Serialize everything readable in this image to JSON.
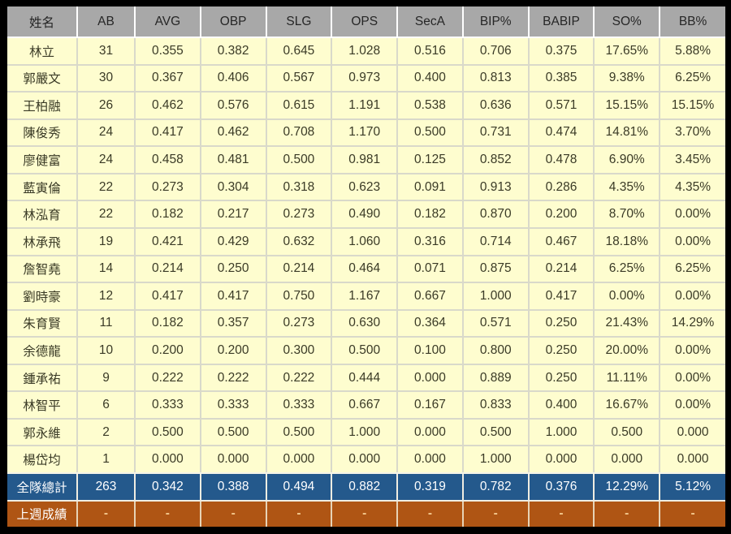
{
  "table": {
    "header": [
      "姓名",
      "AB",
      "AVG",
      "OBP",
      "SLG",
      "OPS",
      "SecA",
      "BIP%",
      "BABIP",
      "SO%",
      "BB%"
    ],
    "players": [
      [
        "林立",
        "31",
        "0.355",
        "0.382",
        "0.645",
        "1.028",
        "0.516",
        "0.706",
        "0.375",
        "17.65%",
        "5.88%"
      ],
      [
        "郭嚴文",
        "30",
        "0.367",
        "0.406",
        "0.567",
        "0.973",
        "0.400",
        "0.813",
        "0.385",
        "9.38%",
        "6.25%"
      ],
      [
        "王柏融",
        "26",
        "0.462",
        "0.576",
        "0.615",
        "1.191",
        "0.538",
        "0.636",
        "0.571",
        "15.15%",
        "15.15%"
      ],
      [
        "陳俊秀",
        "24",
        "0.417",
        "0.462",
        "0.708",
        "1.170",
        "0.500",
        "0.731",
        "0.474",
        "14.81%",
        "3.70%"
      ],
      [
        "廖健富",
        "24",
        "0.458",
        "0.481",
        "0.500",
        "0.981",
        "0.125",
        "0.852",
        "0.478",
        "6.90%",
        "3.45%"
      ],
      [
        "藍寅倫",
        "22",
        "0.273",
        "0.304",
        "0.318",
        "0.623",
        "0.091",
        "0.913",
        "0.286",
        "4.35%",
        "4.35%"
      ],
      [
        "林泓育",
        "22",
        "0.182",
        "0.217",
        "0.273",
        "0.490",
        "0.182",
        "0.870",
        "0.200",
        "8.70%",
        "0.00%"
      ],
      [
        "林承飛",
        "19",
        "0.421",
        "0.429",
        "0.632",
        "1.060",
        "0.316",
        "0.714",
        "0.467",
        "18.18%",
        "0.00%"
      ],
      [
        "詹智堯",
        "14",
        "0.214",
        "0.250",
        "0.214",
        "0.464",
        "0.071",
        "0.875",
        "0.214",
        "6.25%",
        "6.25%"
      ],
      [
        "劉時豪",
        "12",
        "0.417",
        "0.417",
        "0.750",
        "1.167",
        "0.667",
        "1.000",
        "0.417",
        "0.00%",
        "0.00%"
      ],
      [
        "朱育賢",
        "11",
        "0.182",
        "0.357",
        "0.273",
        "0.630",
        "0.364",
        "0.571",
        "0.250",
        "21.43%",
        "14.29%"
      ],
      [
        "余德龍",
        "10",
        "0.200",
        "0.200",
        "0.300",
        "0.500",
        "0.100",
        "0.800",
        "0.250",
        "20.00%",
        "0.00%"
      ],
      [
        "鍾承祐",
        "9",
        "0.222",
        "0.222",
        "0.222",
        "0.444",
        "0.000",
        "0.889",
        "0.250",
        "11.11%",
        "0.00%"
      ],
      [
        "林智平",
        "6",
        "0.333",
        "0.333",
        "0.333",
        "0.667",
        "0.167",
        "0.833",
        "0.400",
        "16.67%",
        "0.00%"
      ],
      [
        "郭永維",
        "2",
        "0.500",
        "0.500",
        "0.500",
        "1.000",
        "0.000",
        "0.500",
        "1.000",
        "0.500",
        "0.000"
      ],
      [
        "楊岱均",
        "1",
        "0.000",
        "0.000",
        "0.000",
        "0.000",
        "0.000",
        "1.000",
        "0.000",
        "0.000",
        "0.000"
      ]
    ],
    "team_total": [
      "全隊總計",
      "263",
      "0.342",
      "0.388",
      "0.494",
      "0.882",
      "0.319",
      "0.782",
      "0.376",
      "12.29%",
      "5.12%"
    ],
    "last_week": [
      "上週成績",
      "-",
      "-",
      "-",
      "-",
      "-",
      "-",
      "-",
      "-",
      "-",
      "-"
    ]
  },
  "colors": {
    "frame_bg": "#000000",
    "header_bg": "#a8a8a8",
    "row_bg": "#fefdcf",
    "total_bg": "#24598c",
    "last_week_bg": "#af5514"
  }
}
